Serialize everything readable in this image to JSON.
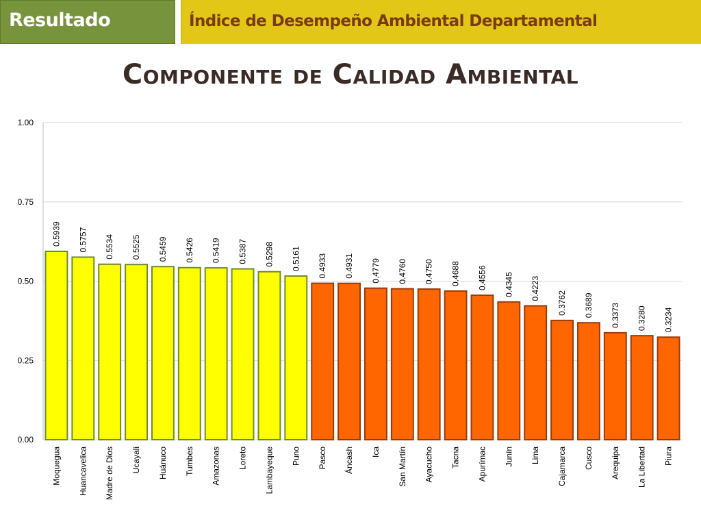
{
  "header": {
    "section_label": "Resultado",
    "heading": "Índice de Desempeño Ambiental Departamental"
  },
  "slide": {
    "title": "Componente de Calidad Ambiental"
  },
  "colors": {
    "header_left_bg": "#77933c",
    "header_right_bg": "#e2c716",
    "heading_text": "#7a3a1a",
    "high_group_fill": "#ffff00",
    "high_group_stroke": "#6e8a2e",
    "low_group_fill": "#ff6600",
    "low_group_stroke": "#9a3a0a"
  },
  "chart_data": {
    "type": "bar",
    "title": "",
    "xlabel": "",
    "ylabel": "",
    "ylim": [
      0,
      1
    ],
    "yticks": [
      "0.00",
      "0.25",
      "0.50",
      "0.75",
      "1.00"
    ],
    "grid": true,
    "legend": "none",
    "categories": [
      "Moquegua",
      "Huancavelica",
      "Madre de Dios",
      "Ucayali",
      "Huánuco",
      "Tumbes",
      "Amazonas",
      "Loreto",
      "Lambayeque",
      "Puno",
      "Pasco",
      "Áncash",
      "Ica",
      "San Martín",
      "Ayacucho",
      "Tacna",
      "Apurímac",
      "Junín",
      "Lima",
      "Cajamarca",
      "Cusco",
      "Arequipa",
      "La Libertad",
      "Piura"
    ],
    "values": [
      0.5939,
      0.5757,
      0.5534,
      0.5525,
      0.5459,
      0.5426,
      0.5419,
      0.5387,
      0.5298,
      0.5161,
      0.4933,
      0.4931,
      0.4779,
      0.476,
      0.475,
      0.4688,
      0.4556,
      0.4345,
      0.4223,
      0.3762,
      0.3689,
      0.3373,
      0.328,
      0.3234
    ],
    "data_labels": [
      "0.5939",
      "0.5757",
      "0.5534",
      "0.5525",
      "0.5459",
      "0.5426",
      "0.5419",
      "0.5387",
      "0.5298",
      "0.5161",
      "0.4933",
      "0.4931",
      "0.4779",
      "0.4760",
      "0.4750",
      "0.4688",
      "0.4556",
      "0.4345",
      "0.4223",
      "0.3762",
      "0.3689",
      "0.3373",
      "0.3280",
      "0.3234"
    ],
    "group_split_threshold": 0.5
  }
}
